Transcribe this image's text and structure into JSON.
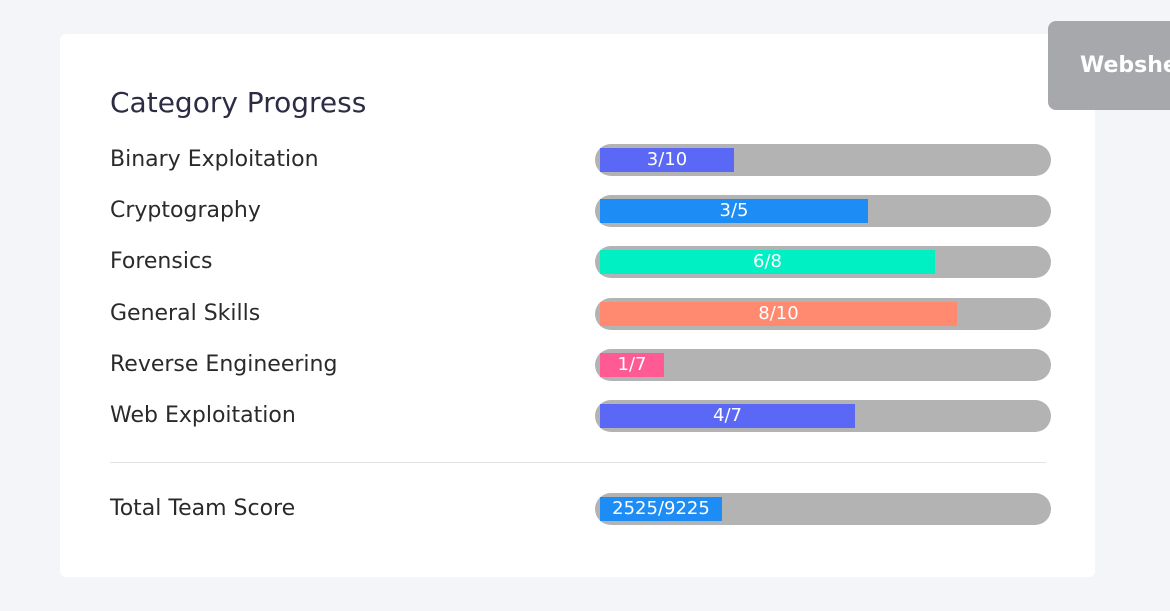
{
  "card": {
    "title": "Category Progress"
  },
  "categories": [
    {
      "label": "Binary Exploitation",
      "solved": 3,
      "total": 10,
      "text": "3/10",
      "color": "#5b68f6"
    },
    {
      "label": "Cryptography",
      "solved": 3,
      "total": 5,
      "text": "3/5",
      "color": "#1e8cf5"
    },
    {
      "label": "Forensics",
      "solved": 6,
      "total": 8,
      "text": "6/8",
      "color": "#00f0c4"
    },
    {
      "label": "General Skills",
      "solved": 8,
      "total": 10,
      "text": "8/10",
      "color": "#ff8a70"
    },
    {
      "label": "Reverse Engineering",
      "solved": 1,
      "total": 7,
      "text": "1/7",
      "color": "#ff5a94"
    },
    {
      "label": "Web Exploitation",
      "solved": 4,
      "total": 7,
      "text": "4/7",
      "color": "#5b68f6"
    }
  ],
  "total": {
    "label": "Total Team Score",
    "score": 2525,
    "max": 9225,
    "text": "2525/9225",
    "color": "#1e8cf5"
  },
  "webshell": {
    "label": "Webshell",
    "icon": "terminal-icon"
  }
}
